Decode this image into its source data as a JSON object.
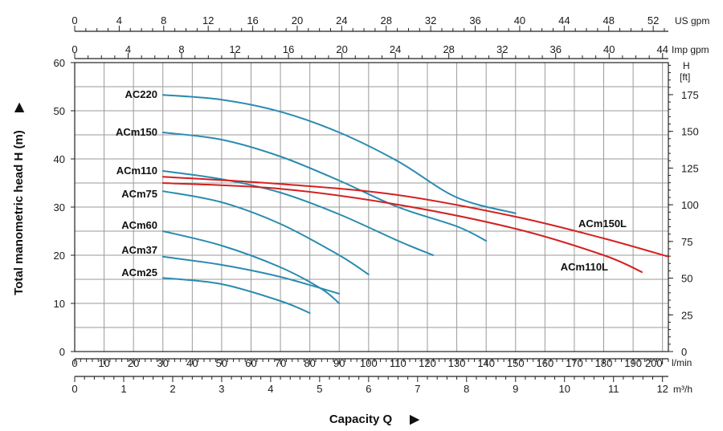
{
  "chart_data": {
    "type": "line",
    "title": "",
    "xlabel": "Capacity Q",
    "ylabel": "Total manometric head H (m)",
    "y2label_line1": "H",
    "y2label_line2": "[ft]",
    "arrow_glyph": "▶",
    "units": {
      "lmin": "l/min",
      "m3h": "m³/h",
      "usgpm": "US gpm",
      "impgpm": "Imp gpm"
    },
    "xlim_lmin": [
      0,
      202
    ],
    "ylim_m": [
      0,
      60
    ],
    "grid": true,
    "axes": {
      "lmin_ticks": [
        0,
        10,
        20,
        30,
        40,
        50,
        60,
        70,
        80,
        90,
        100,
        110,
        120,
        130,
        140,
        150,
        160,
        170,
        180,
        190,
        200
      ],
      "m3h_ticks": [
        0,
        1,
        2,
        3,
        4,
        5,
        6,
        7,
        8,
        9,
        10,
        11,
        12
      ],
      "usgpm_ticks": [
        0,
        4,
        8,
        12,
        16,
        20,
        24,
        28,
        32,
        36,
        40,
        44,
        48,
        52
      ],
      "impgpm_ticks": [
        0,
        4,
        8,
        12,
        16,
        20,
        24,
        28,
        32,
        36,
        40,
        44
      ],
      "m_ticks": [
        0,
        10,
        20,
        30,
        40,
        50,
        60
      ],
      "ft_ticks": [
        0,
        25,
        50,
        75,
        100,
        125,
        150,
        175
      ]
    },
    "series": [
      {
        "name": "AC220",
        "color": "#2a8bb0",
        "x": [
          30,
          50,
          70,
          90,
          110,
          130,
          150
        ],
        "y": [
          53.3,
          52.3,
          49.8,
          45.5,
          39.5,
          32.0,
          28.7
        ]
      },
      {
        "name": "ACm150",
        "color": "#2a8bb0",
        "x": [
          30,
          50,
          70,
          90,
          110,
          130,
          140
        ],
        "y": [
          45.5,
          44.0,
          40.5,
          35.5,
          30.0,
          26.0,
          23.0
        ]
      },
      {
        "name": "ACm110",
        "color": "#2a8bb0",
        "x": [
          30,
          50,
          70,
          90,
          110,
          122
        ],
        "y": [
          37.5,
          35.8,
          33.0,
          28.5,
          23.0,
          20.0
        ]
      },
      {
        "name": "ACm75",
        "color": "#2a8bb0",
        "x": [
          30,
          50,
          70,
          90,
          100
        ],
        "y": [
          33.3,
          31.0,
          26.5,
          20.0,
          16.0
        ]
      },
      {
        "name": "ACm60",
        "color": "#2a8bb0",
        "x": [
          30,
          50,
          70,
          84,
          90
        ],
        "y": [
          25.0,
          22.0,
          17.5,
          13.0,
          10.0
        ]
      },
      {
        "name": "ACm37",
        "color": "#2a8bb0",
        "x": [
          30,
          50,
          70,
          90
        ],
        "y": [
          19.7,
          18.0,
          15.5,
          12.0
        ]
      },
      {
        "name": "ACm25",
        "color": "#2a8bb0",
        "x": [
          30,
          50,
          70,
          80
        ],
        "y": [
          15.3,
          14.0,
          10.5,
          8.0
        ]
      },
      {
        "name": "ACm150L",
        "color": "#d42020",
        "x": [
          30,
          70,
          110,
          150,
          180,
          202
        ],
        "y": [
          36.3,
          34.8,
          32.5,
          28.0,
          23.5,
          19.7
        ]
      },
      {
        "name": "ACm110L",
        "color": "#d42020",
        "x": [
          30,
          70,
          110,
          150,
          180,
          193
        ],
        "y": [
          35.0,
          33.8,
          30.5,
          25.5,
          20.0,
          16.5
        ]
      }
    ]
  }
}
